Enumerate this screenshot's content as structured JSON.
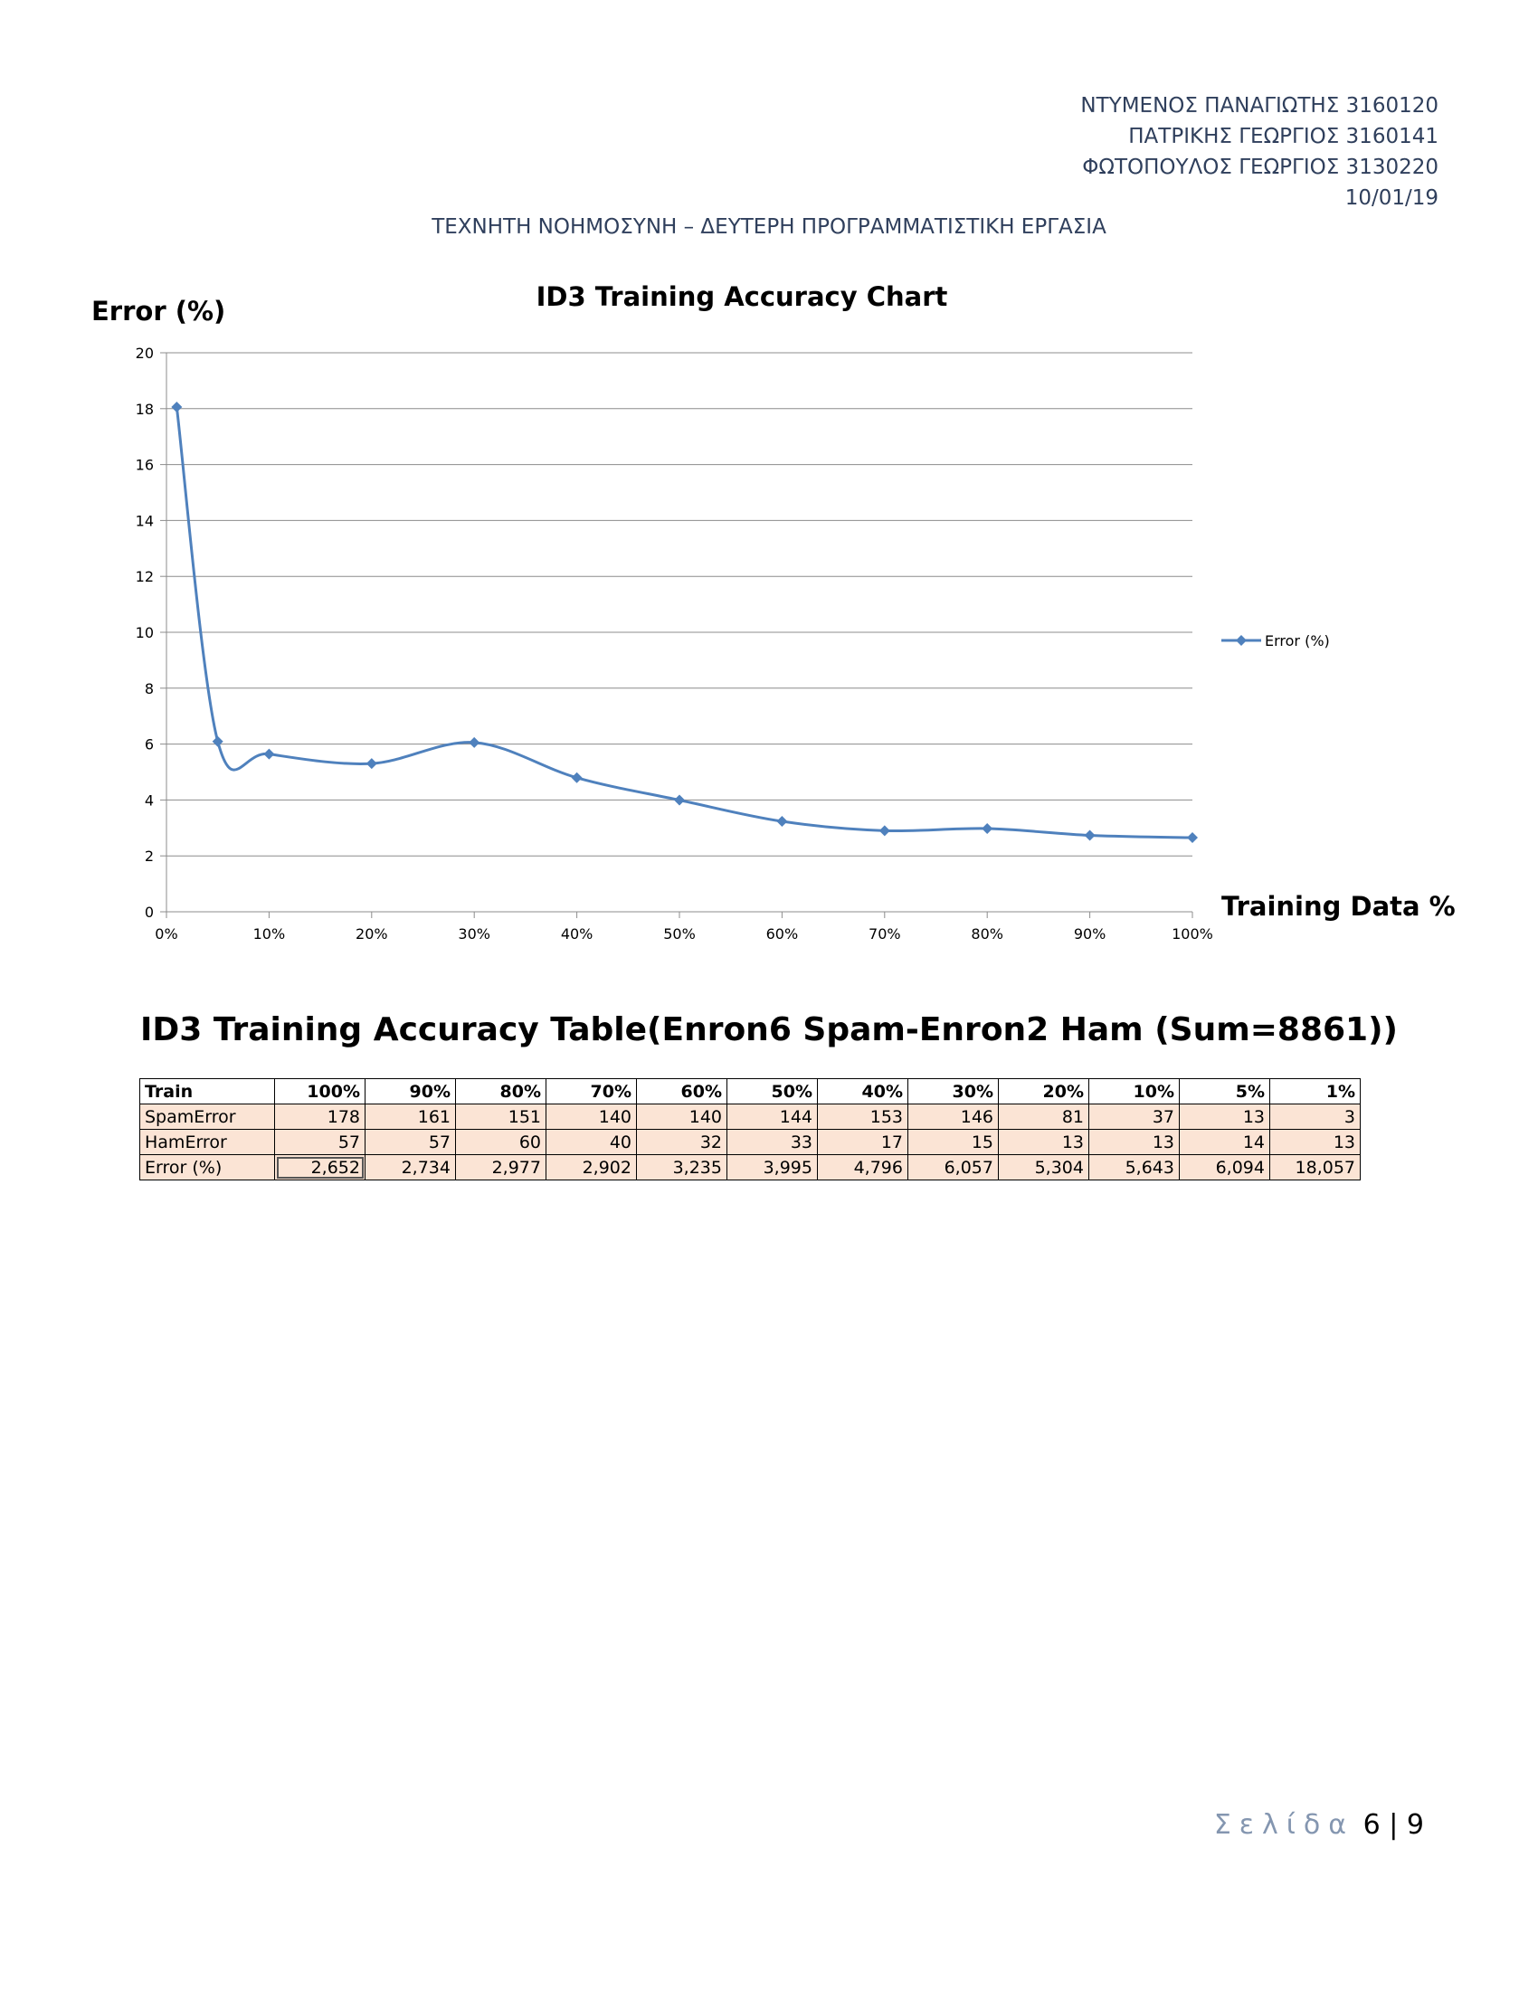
{
  "header": {
    "authors": [
      "ΝΤΥΜΕΝΟΣ ΠΑΝΑΓΙΩΤΗΣ 3160120",
      "ΠΑΤΡΙΚΗΣ ΓΕΩΡΓΙΟΣ 3160141",
      "ΦΩΤΟΠΟΥΛΟΣ ΓΕΩΡΓΙΟΣ 3130220"
    ],
    "date": "10/01/19",
    "subtitle": "ΤΕΧΝΗΤΗ ΝΟΗΜΟΣΥΝΗ – ΔΕΥΤΕΡΗ ΠΡΟΓΡΑΜΜΑΤΙΣΤΙΚΗ ΕΡΓΑΣΙΑ"
  },
  "chart_data": {
    "type": "line",
    "title": "ID3 Training Accuracy Chart",
    "xlabel": "Training Data %",
    "ylabel": "Error (%)",
    "xlim": [
      0,
      100
    ],
    "ylim": [
      0,
      20
    ],
    "x_ticks": [
      "0%",
      "10%",
      "20%",
      "30%",
      "40%",
      "50%",
      "60%",
      "70%",
      "80%",
      "90%",
      "100%"
    ],
    "y_ticks": [
      "0",
      "2",
      "4",
      "6",
      "8",
      "10",
      "12",
      "14",
      "16",
      "18",
      "20"
    ],
    "grid": true,
    "legend_position": "right",
    "smooth": true,
    "series": [
      {
        "name": "Error (%)",
        "color": "#4f81bd",
        "x": [
          1,
          5,
          10,
          20,
          30,
          40,
          50,
          60,
          70,
          80,
          90,
          100
        ],
        "y": [
          18.057,
          6.094,
          5.643,
          5.304,
          6.057,
          4.796,
          3.995,
          3.235,
          2.902,
          2.977,
          2.734,
          2.652
        ]
      }
    ]
  },
  "table": {
    "title": "ID3 Training Accuracy Table(Enron6 Spam-Enron2 Ham (Sum=8861))",
    "header": [
      "Train",
      "100%",
      "90%",
      "80%",
      "70%",
      "60%",
      "50%",
      "40%",
      "30%",
      "20%",
      "10%",
      "5%",
      "1%"
    ],
    "rows": [
      [
        "SpamError",
        "178",
        "161",
        "151",
        "140",
        "140",
        "144",
        "153",
        "146",
        "81",
        "37",
        "13",
        "3"
      ],
      [
        "HamError",
        "57",
        "57",
        "60",
        "40",
        "32",
        "33",
        "17",
        "15",
        "13",
        "13",
        "14",
        "13"
      ],
      [
        "Error (%)",
        "2,652",
        "2,734",
        "2,977",
        "2,902",
        "3,235",
        "3,995",
        "4,796",
        "6,057",
        "5,304",
        "5,643",
        "6,094",
        "18,057"
      ]
    ],
    "tint_color": "#fbe4d5"
  },
  "footer": {
    "page_word": "Σελίδα",
    "page_number": "6",
    "separator": "|",
    "total_pages": "9"
  }
}
